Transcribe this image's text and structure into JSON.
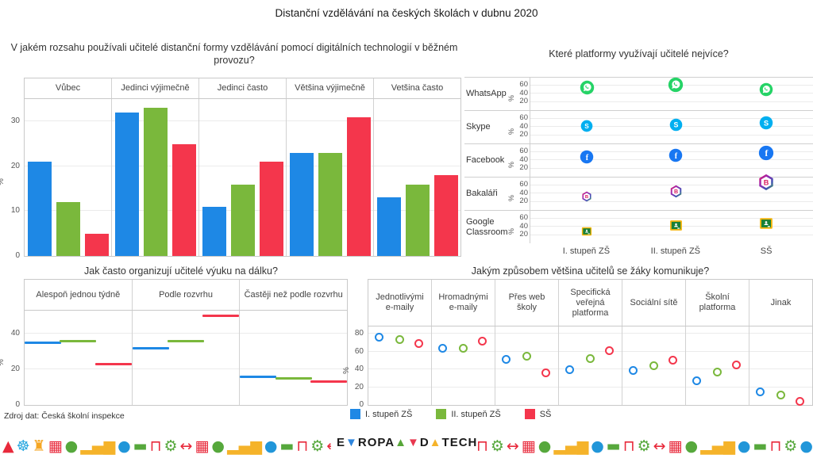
{
  "page": {
    "title": "Distanční vzdělávání na českých školách v dubnu 2020",
    "source": "Zdroj dat: Česká školní inspekce"
  },
  "legend": {
    "items": [
      {
        "label": "I. stupeň ZŠ",
        "color": "#1E88E5"
      },
      {
        "label": "II. stupeň ZŠ",
        "color": "#7AB83C"
      },
      {
        "label": "SŠ",
        "color": "#F4364C"
      }
    ]
  },
  "chart_data": [
    {
      "id": "usage",
      "type": "bar",
      "title": "V jakém rozsahu používali učitelé distanční formy vzdělávání pomocí digitálních technologií v běžném provozu?",
      "categories": [
        "Vůbec",
        "Jedinci výjimečně",
        "Jedinci často",
        "Většina výjimečně",
        "Vetšina často"
      ],
      "series": [
        {
          "name": "I. stupeň ZŠ",
          "color": "#1E88E5",
          "values": [
            21,
            32,
            11,
            23,
            13
          ]
        },
        {
          "name": "II. stupeň ZŠ",
          "color": "#7AB83C",
          "values": [
            12,
            33,
            16,
            23,
            16
          ]
        },
        {
          "name": "SŠ",
          "color": "#F4364C",
          "values": [
            5,
            25,
            21,
            31,
            18
          ]
        }
      ],
      "xlabel": "",
      "ylabel": "%",
      "yticks": [
        0,
        10,
        20,
        30
      ],
      "ylim": [
        0,
        35
      ],
      "grid": true
    },
    {
      "id": "platforms",
      "type": "scatter",
      "title": "Které platformy využívají učitelé nejvíce?",
      "categories": [
        "I. stupeň ZŠ",
        "II. stupeň ZŠ",
        "SŠ"
      ],
      "rows": [
        {
          "label": "WhatsApp",
          "icon": "whatsapp-icon",
          "values": [
            44,
            52,
            40
          ]
        },
        {
          "label": "Skype",
          "icon": "skype-icon",
          "values": [
            32,
            36,
            40
          ]
        },
        {
          "label": "Facebook",
          "icon": "facebook-icon",
          "values": [
            38,
            42,
            48
          ]
        },
        {
          "label": "Bakaláři",
          "icon": "bakalari-icon",
          "values": [
            22,
            35,
            58
          ]
        },
        {
          "label": "Google Classroom",
          "icon": "google-classroom-icon",
          "values": [
            20,
            33,
            38
          ]
        }
      ],
      "ylabel": "%",
      "yticks": [
        20,
        40,
        60
      ],
      "ylim": [
        0,
        80
      ],
      "grid": true,
      "note": "marker size scales with value"
    },
    {
      "id": "frequency",
      "type": "dash",
      "title": "Jak často organizují učitelé výuku na dálku?",
      "categories": [
        "Alespoň jednou týdně",
        "Podle rozvrhu",
        "Častěji než podle rozvrhu"
      ],
      "series": [
        {
          "name": "I. stupeň ZŠ",
          "color": "#1E88E5",
          "values": [
            35,
            32,
            16
          ]
        },
        {
          "name": "II. stupeň ZŠ",
          "color": "#7AB83C",
          "values": [
            36,
            36,
            15
          ]
        },
        {
          "name": "SŠ",
          "color": "#F4364C",
          "values": [
            23,
            50,
            13
          ]
        }
      ],
      "xlabel": "",
      "ylabel": "%",
      "yticks": [
        0,
        20,
        40
      ],
      "ylim": [
        0,
        53
      ],
      "grid": true
    },
    {
      "id": "communication",
      "type": "scatter",
      "title": "Jakým způsobem většina učitelů se žáky komunikuje?",
      "categories": [
        "Jednotlivými e-maily",
        "Hromadnými e-maily",
        "Přes web školy",
        "Specifická veřejná platforma",
        "Sociální sítě",
        "Školní platforma",
        "Jinak"
      ],
      "series": [
        {
          "name": "I. stupeň ZŠ",
          "color": "#1E88E5",
          "values": [
            76,
            64,
            51,
            40,
            39,
            27,
            15
          ]
        },
        {
          "name": "II. stupeň ZŠ",
          "color": "#7AB83C",
          "values": [
            73,
            64,
            55,
            52,
            44,
            37,
            11
          ]
        },
        {
          "name": "SŠ",
          "color": "#F4364C",
          "values": [
            69,
            72,
            36,
            61,
            50,
            45,
            4
          ]
        }
      ],
      "xlabel": "",
      "ylabel": "%",
      "yticks": [
        0,
        20,
        40,
        60,
        80
      ],
      "ylim": [
        0,
        88
      ],
      "grid": true,
      "legend_position": "bottom-left"
    }
  ],
  "footer": {
    "logo_segments": [
      {
        "text": "E",
        "color": "#1a1a1a"
      },
      {
        "text": "▼",
        "color": "#2E86DE"
      },
      {
        "text": "ROPA",
        "color": "#1a1a1a"
      },
      {
        "text": "▲",
        "color": "#57A639"
      },
      {
        "text": " ▼ ",
        "color": "#E8384F"
      },
      {
        "text": "D",
        "color": "#1a1a1a"
      },
      {
        "text": "▲",
        "color": "#F5B32A"
      },
      {
        "text": "TECH",
        "color": "#1a1a1a"
      }
    ],
    "icon_defs": {
      "mountain-icon": {
        "glyph": "▲",
        "color": "#E8293B"
      },
      "ferris-wheel-icon": {
        "glyph": "☸",
        "color": "#29A8E0"
      },
      "tower-icon": {
        "glyph": "♜",
        "color": "#F5A623"
      },
      "building-icon": {
        "glyph": "▦",
        "color": "#E8293B"
      },
      "tree-icon": {
        "glyph": "●",
        "color": "#56A83C"
      },
      "bar-chart-icon": {
        "glyph": "▂▄▆",
        "color": "#F5B32A"
      },
      "globe-icon": {
        "glyph": "●",
        "color": "#2196D9"
      },
      "car-icon": {
        "glyph": "▬",
        "color": "#56A83C"
      },
      "bench-icon": {
        "glyph": "⊓",
        "color": "#E8293B"
      },
      "gear-icon": {
        "glyph": "⚙",
        "color": "#56A83C"
      },
      "arrows-icon": {
        "glyph": "↔",
        "color": "#E8293B"
      },
      "car-red-icon": {
        "glyph": "▬",
        "color": "#E8293B"
      }
    },
    "strip_left": [
      "mountain-icon",
      "ferris-wheel-icon",
      "tower-icon",
      "building-icon",
      "tree-icon",
      "bar-chart-icon",
      "globe-icon",
      "car-icon",
      "bench-icon",
      "gear-icon",
      "arrows-icon",
      "building-icon",
      "tree-icon",
      "bar-chart-icon",
      "globe-icon",
      "car-icon",
      "bench-icon",
      "gear-icon",
      "arrows-icon",
      "building-icon",
      "tree-icon"
    ],
    "strip_right": [
      "bench-icon",
      "gear-icon",
      "arrows-icon",
      "building-icon",
      "tree-icon",
      "bar-chart-icon",
      "globe-icon",
      "car-icon",
      "bench-icon",
      "gear-icon",
      "arrows-icon",
      "building-icon",
      "tree-icon",
      "bar-chart-icon",
      "globe-icon",
      "car-icon",
      "bench-icon",
      "gear-icon",
      "globe-icon",
      "car-red-icon"
    ]
  }
}
